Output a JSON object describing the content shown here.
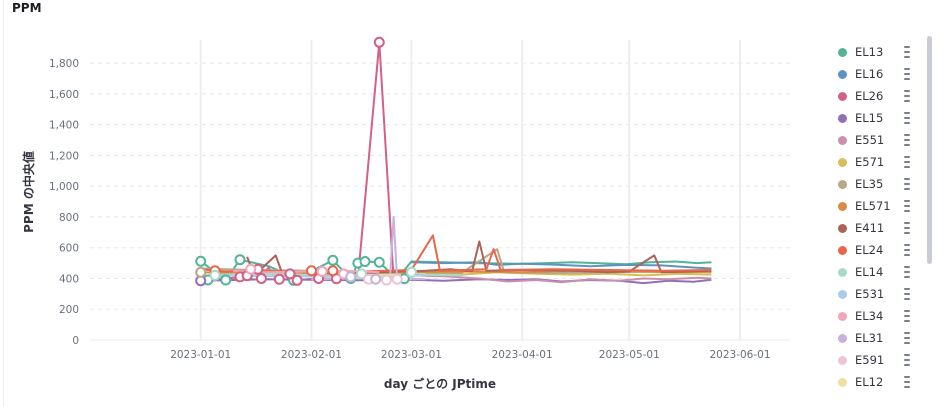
{
  "panel": {
    "title": "PPM"
  },
  "chart_data": {
    "type": "line",
    "title": "PPM",
    "xlabel": "day ごとの JPtime",
    "ylabel": "PPM の中央値",
    "x_type": "date",
    "xlim": [
      "2022-12-01",
      "2023-06-15"
    ],
    "ylim": [
      0,
      1950
    ],
    "x_ticks": [
      "2023-01-01",
      "2023-02-01",
      "2023-03-01",
      "2023-04-01",
      "2023-05-01",
      "2023-06-01"
    ],
    "y_ticks": [
      0,
      200,
      400,
      600,
      800,
      1000,
      1200,
      1400,
      1600,
      1800
    ],
    "y_tick_labels": [
      "0",
      "200",
      "400",
      "600",
      "800",
      "1,000",
      "1,200",
      "1,400",
      "1,600",
      "1,800"
    ],
    "grid": {
      "x": true,
      "y": true
    },
    "legend": "right",
    "series": [
      {
        "name": "EL13",
        "color": "#54b399",
        "values": [
          [
            "2023-01-01",
            512
          ],
          [
            "2023-01-08",
            390
          ],
          [
            "2023-01-12",
            522
          ],
          [
            "2023-01-20",
            480
          ],
          [
            "2023-01-28",
            400
          ],
          [
            "2023-02-07",
            518
          ],
          [
            "2023-02-12",
            400
          ],
          [
            "2023-02-14",
            498
          ],
          [
            "2023-02-16",
            510
          ],
          [
            "2023-02-20",
            505
          ],
          [
            "2023-02-25",
            398
          ],
          [
            "2023-03-01",
            510
          ],
          [
            "2023-03-10",
            505
          ],
          [
            "2023-03-18",
            500
          ],
          [
            "2023-03-25",
            498
          ],
          [
            "2023-04-01",
            495
          ],
          [
            "2023-04-08",
            500
          ],
          [
            "2023-04-15",
            505
          ],
          [
            "2023-04-22",
            500
          ],
          [
            "2023-04-30",
            492
          ],
          [
            "2023-05-07",
            505
          ],
          [
            "2023-05-14",
            510
          ],
          [
            "2023-05-20",
            500
          ],
          [
            "2023-05-24",
            505
          ]
        ]
      },
      {
        "name": "EL16",
        "color": "#6092c0",
        "values": [
          [
            "2023-03-01",
            505
          ],
          [
            "2023-03-10",
            500
          ],
          [
            "2023-03-20",
            505
          ],
          [
            "2023-03-25",
            488
          ],
          [
            "2023-04-01",
            495
          ],
          [
            "2023-04-10",
            490
          ],
          [
            "2023-04-20",
            480
          ],
          [
            "2023-04-30",
            488
          ],
          [
            "2023-05-10",
            485
          ],
          [
            "2023-05-20",
            470
          ],
          [
            "2023-05-24",
            465
          ]
        ]
      },
      {
        "name": "EL26",
        "color": "#d36086",
        "values": [
          [
            "2023-01-01",
            395
          ],
          [
            "2023-01-07",
            398
          ],
          [
            "2023-01-13",
            410
          ],
          [
            "2023-01-18",
            420
          ],
          [
            "2023-01-20",
            470
          ],
          [
            "2023-01-22",
            400
          ],
          [
            "2023-01-27",
            388
          ],
          [
            "2023-02-03",
            400
          ],
          [
            "2023-02-08",
            395
          ],
          [
            "2023-02-14",
            398
          ],
          [
            "2023-02-20",
            1935
          ],
          [
            "2023-02-24",
            395
          ]
        ]
      },
      {
        "name": "EL15",
        "color": "#9170b8",
        "values": [
          [
            "2023-01-01",
            385
          ],
          [
            "2023-01-10",
            390
          ],
          [
            "2023-01-20",
            395
          ],
          [
            "2023-02-01",
            392
          ],
          [
            "2023-02-15",
            388
          ],
          [
            "2023-03-01",
            392
          ],
          [
            "2023-03-10",
            385
          ],
          [
            "2023-03-20",
            395
          ],
          [
            "2023-03-28",
            390
          ],
          [
            "2023-04-05",
            395
          ],
          [
            "2023-04-12",
            380
          ],
          [
            "2023-04-20",
            390
          ],
          [
            "2023-04-28",
            385
          ],
          [
            "2023-05-05",
            370
          ],
          [
            "2023-05-12",
            385
          ],
          [
            "2023-05-19",
            378
          ],
          [
            "2023-05-24",
            392
          ]
        ]
      },
      {
        "name": "E551",
        "color": "#ca8eae",
        "values": [
          [
            "2023-03-01",
            420
          ],
          [
            "2023-03-10",
            415
          ],
          [
            "2023-03-20",
            400
          ],
          [
            "2023-03-28",
            380
          ],
          [
            "2023-04-05",
            390
          ],
          [
            "2023-04-12",
            375
          ],
          [
            "2023-04-20",
            395
          ],
          [
            "2023-04-28",
            385
          ],
          [
            "2023-05-05",
            400
          ],
          [
            "2023-05-12",
            395
          ],
          [
            "2023-05-20",
            405
          ],
          [
            "2023-05-24",
            400
          ]
        ]
      },
      {
        "name": "E571",
        "color": "#d6bf57",
        "values": [
          [
            "2023-03-05",
            430
          ],
          [
            "2023-03-15",
            425
          ],
          [
            "2023-03-25",
            440
          ],
          [
            "2023-04-05",
            430
          ],
          [
            "2023-04-15",
            425
          ],
          [
            "2023-04-25",
            430
          ],
          [
            "2023-05-05",
            420
          ],
          [
            "2023-05-15",
            430
          ],
          [
            "2023-05-24",
            425
          ]
        ]
      },
      {
        "name": "EL35",
        "color": "#b9a888",
        "values": [
          [
            "2023-01-01",
            465
          ],
          [
            "2023-01-15",
            455
          ],
          [
            "2023-02-01",
            450
          ],
          [
            "2023-02-15",
            445
          ],
          [
            "2023-03-01",
            440
          ],
          [
            "2023-03-15",
            435
          ],
          [
            "2023-03-25",
            590
          ],
          [
            "2023-03-27",
            440
          ],
          [
            "2023-04-10",
            435
          ],
          [
            "2023-04-25",
            440
          ],
          [
            "2023-05-10",
            445
          ],
          [
            "2023-05-24",
            440
          ]
        ]
      },
      {
        "name": "EL571",
        "color": "#da8b45",
        "values": [
          [
            "2023-01-01",
            440
          ],
          [
            "2023-01-15",
            430
          ],
          [
            "2023-02-01",
            435
          ],
          [
            "2023-02-15",
            430
          ],
          [
            "2023-03-01",
            440
          ],
          [
            "2023-03-15",
            445
          ],
          [
            "2023-04-01",
            440
          ],
          [
            "2023-04-15",
            450
          ],
          [
            "2023-05-01",
            445
          ],
          [
            "2023-05-15",
            440
          ],
          [
            "2023-05-24",
            445
          ]
        ]
      },
      {
        "name": "E411",
        "color": "#aa6556",
        "values": [
          [
            "2023-01-14",
            540
          ],
          [
            "2023-01-16",
            420
          ],
          [
            "2023-01-22",
            550
          ],
          [
            "2023-01-24",
            420
          ],
          [
            "2023-03-05",
            450
          ],
          [
            "2023-03-12",
            460
          ],
          [
            "2023-03-18",
            445
          ],
          [
            "2023-03-20",
            640
          ],
          [
            "2023-03-22",
            450
          ],
          [
            "2023-04-01",
            455
          ],
          [
            "2023-04-15",
            450
          ],
          [
            "2023-04-25",
            440
          ],
          [
            "2023-05-01",
            445
          ],
          [
            "2023-05-08",
            550
          ],
          [
            "2023-05-10",
            440
          ],
          [
            "2023-05-24",
            450
          ]
        ]
      },
      {
        "name": "EL24",
        "color": "#e7664c",
        "values": [
          [
            "2023-01-01",
            460
          ],
          [
            "2023-01-08",
            445
          ],
          [
            "2023-01-18",
            450
          ],
          [
            "2023-02-01",
            440
          ],
          [
            "2023-02-15",
            445
          ],
          [
            "2023-03-01",
            455
          ],
          [
            "2023-03-07",
            680
          ],
          [
            "2023-03-09",
            450
          ],
          [
            "2023-03-22",
            460
          ],
          [
            "2023-03-24",
            590
          ],
          [
            "2023-03-26",
            455
          ],
          [
            "2023-04-10",
            460
          ],
          [
            "2023-04-25",
            455
          ],
          [
            "2023-05-10",
            450
          ],
          [
            "2023-05-24",
            455
          ]
        ]
      },
      {
        "name": "EL14",
        "color": "#a8dac6",
        "values": [
          [
            "2023-01-05",
            425
          ],
          [
            "2023-01-20",
            430
          ],
          [
            "2023-02-05",
            420
          ],
          [
            "2023-02-20",
            425
          ],
          [
            "2023-03-01",
            425
          ],
          [
            "2023-03-15",
            420
          ]
        ]
      },
      {
        "name": "E531",
        "color": "#aecbe6",
        "values": [
          [
            "2023-01-03",
            420
          ],
          [
            "2023-01-25",
            415
          ],
          [
            "2023-02-15",
            410
          ],
          [
            "2023-03-05",
            420
          ]
        ]
      },
      {
        "name": "EL34",
        "color": "#f2a5b9",
        "values": [
          [
            "2023-01-10",
            450
          ],
          [
            "2023-01-20",
            440
          ],
          [
            "2023-02-01",
            445
          ],
          [
            "2023-02-10",
            450
          ],
          [
            "2023-02-20",
            440
          ]
        ]
      },
      {
        "name": "EL31",
        "color": "#c6b2dc",
        "values": [
          [
            "2023-02-01",
            395
          ],
          [
            "2023-02-15",
            400
          ],
          [
            "2023-02-23",
            400
          ],
          [
            "2023-02-24",
            800
          ],
          [
            "2023-02-25",
            400
          ],
          [
            "2023-03-05",
            395
          ]
        ]
      },
      {
        "name": "E591",
        "color": "#eac5d6",
        "values": [
          [
            "2023-02-10",
            405
          ],
          [
            "2023-02-20",
            400
          ],
          [
            "2023-03-01",
            395
          ]
        ]
      },
      {
        "name": "EL12",
        "color": "#f0df9f",
        "values": [
          [
            "2023-02-15",
            420
          ],
          [
            "2023-03-01",
            425
          ]
        ]
      }
    ],
    "points": [
      {
        "series": "EL13",
        "values": [
          [
            "2023-01-01",
            512
          ],
          [
            "2023-01-03",
            390
          ],
          [
            "2023-01-08",
            390
          ],
          [
            "2023-01-12",
            522
          ],
          [
            "2023-01-27",
            388
          ],
          [
            "2023-02-07",
            518
          ],
          [
            "2023-02-12",
            400
          ],
          [
            "2023-02-14",
            500
          ],
          [
            "2023-02-16",
            510
          ],
          [
            "2023-02-20",
            505
          ],
          [
            "2023-02-27",
            398
          ]
        ]
      },
      {
        "series": "EL26",
        "values": [
          [
            "2023-01-12",
            410
          ],
          [
            "2023-01-14",
            418
          ],
          [
            "2023-01-17",
            460
          ],
          [
            "2023-01-18",
            400
          ],
          [
            "2023-01-23",
            395
          ],
          [
            "2023-01-26",
            430
          ],
          [
            "2023-01-28",
            388
          ],
          [
            "2023-02-03",
            400
          ],
          [
            "2023-02-08",
            398
          ],
          [
            "2023-02-20",
            1935
          ]
        ]
      },
      {
        "series": "EL15",
        "values": [
          [
            "2023-01-01",
            385
          ]
        ]
      },
      {
        "series": "EL24",
        "values": [
          [
            "2023-01-05",
            450
          ],
          [
            "2023-02-01",
            450
          ],
          [
            "2023-02-07",
            450
          ]
        ]
      },
      {
        "series": "EL34",
        "values": [
          [
            "2023-01-15",
            460
          ],
          [
            "2023-02-04",
            445
          ],
          [
            "2023-02-10",
            430
          ]
        ]
      },
      {
        "series": "EL35",
        "values": [
          [
            "2023-01-01",
            440
          ]
        ]
      },
      {
        "series": "EL14",
        "values": [
          [
            "2023-01-05",
            420
          ],
          [
            "2023-02-15",
            430
          ],
          [
            "2023-03-01",
            440
          ]
        ]
      },
      {
        "series": "E591",
        "values": [
          [
            "2023-02-17",
            395
          ],
          [
            "2023-02-22",
            390
          ],
          [
            "2023-02-25",
            395
          ]
        ]
      },
      {
        "series": "EL31",
        "values": [
          [
            "2023-02-12",
            410
          ],
          [
            "2023-02-19",
            395
          ]
        ]
      }
    ]
  },
  "legend": {
    "items": [
      {
        "label": "EL13",
        "color": "#54b399"
      },
      {
        "label": "EL16",
        "color": "#6092c0"
      },
      {
        "label": "EL26",
        "color": "#d36086"
      },
      {
        "label": "EL15",
        "color": "#9170b8"
      },
      {
        "label": "E551",
        "color": "#ca8eae"
      },
      {
        "label": "E571",
        "color": "#d6bf57"
      },
      {
        "label": "EL35",
        "color": "#b9a888"
      },
      {
        "label": "EL571",
        "color": "#da8b45"
      },
      {
        "label": "E411",
        "color": "#aa6556"
      },
      {
        "label": "EL24",
        "color": "#e7664c"
      },
      {
        "label": "EL14",
        "color": "#a8dac6"
      },
      {
        "label": "E531",
        "color": "#aecbe6"
      },
      {
        "label": "EL34",
        "color": "#f2a5b9"
      },
      {
        "label": "EL31",
        "color": "#c6b2dc"
      },
      {
        "label": "E591",
        "color": "#eac5d6"
      },
      {
        "label": "EL12",
        "color": "#f0df9f"
      }
    ]
  }
}
